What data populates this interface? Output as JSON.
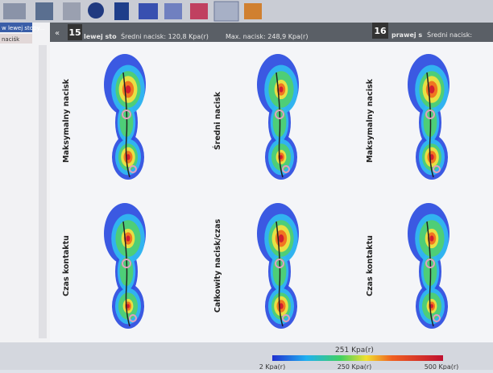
{
  "sidebar": {
    "items": [
      "w lewej stopy...",
      "naciśk"
    ]
  },
  "header": {
    "left": {
      "number": "15",
      "foot": "lewej sto",
      "mean": "Średni nacisk:  120,8 Kpa(r)",
      "max": "Max. nacisk:   248,9 Kpa(r)"
    },
    "right": {
      "number": "16",
      "foot": "prawej s",
      "mean": "Średni nacisk:"
    }
  },
  "maps": [
    {
      "label": "Maksymalny nacisk"
    },
    {
      "label": "Średni nacisk"
    },
    {
      "label": "Maksymalny nacisk"
    },
    {
      "label": "Czas kontaktu"
    },
    {
      "label": "Całkowity nacisk/czas"
    },
    {
      "label": "Czas kontaktu"
    }
  ],
  "scale": {
    "value": "251 Kpa(r)",
    "min": "2 Kpa(r)",
    "mid": "250 Kpa(r)",
    "max": "500 Kpa(r)"
  }
}
